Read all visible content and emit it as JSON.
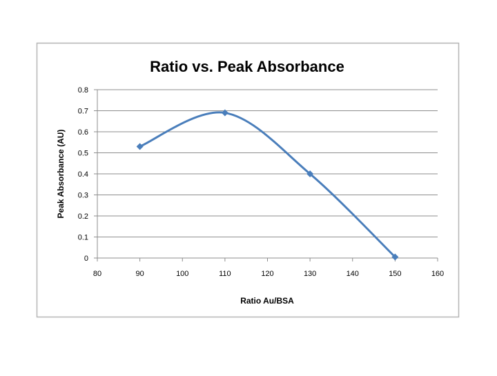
{
  "chart_data": {
    "type": "line",
    "title": "Ratio vs. Peak Absorbance",
    "xlabel": "Ratio Au/BSA",
    "ylabel": "Peak Absorbance (AU)",
    "xlim": [
      80,
      160
    ],
    "ylim": [
      0,
      0.8
    ],
    "xticks": [
      80,
      90,
      100,
      110,
      120,
      130,
      140,
      150,
      160
    ],
    "yticks": [
      "0",
      "0.1",
      "0.2",
      "0.3",
      "0.4",
      "0.5",
      "0.6",
      "0.7",
      "0.8"
    ],
    "grid": "horizontal",
    "smooth": true,
    "series": [
      {
        "name": "Peak Absorbance",
        "color": "#4a7ebb",
        "x": [
          90,
          110,
          130,
          150
        ],
        "y": [
          0.53,
          0.69,
          0.4,
          0.005
        ]
      }
    ]
  }
}
